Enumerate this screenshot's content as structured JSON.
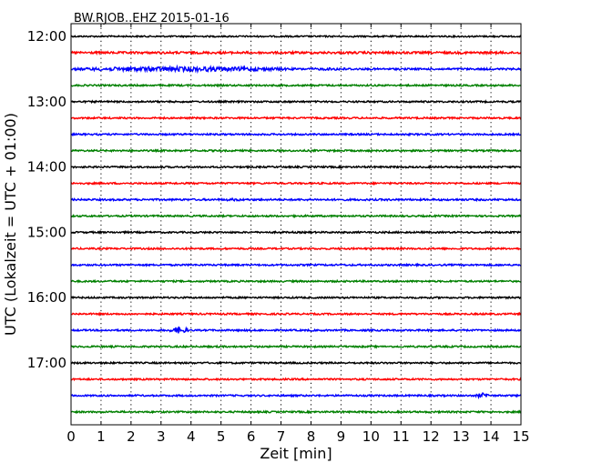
{
  "chart_data": {
    "type": "line",
    "title": "BW.RJOB..EHZ 2015-01-16",
    "xlabel": "Zeit  [min]",
    "ylabel": "UTC (Lokalzeit = UTC + 01:00)",
    "xlim": [
      0,
      15
    ],
    "x_ticks": [
      "0",
      "1",
      "2",
      "3",
      "4",
      "5",
      "6",
      "7",
      "8",
      "9",
      "10",
      "11",
      "12",
      "13",
      "14",
      "15"
    ],
    "y_ticks": [
      "12:00",
      "13:00",
      "14:00",
      "15:00",
      "16:00",
      "17:00"
    ],
    "grid": "vertical dotted",
    "color_cycle": [
      "#000000",
      "#ff0000",
      "#0000ff",
      "#008000"
    ],
    "series": [
      {
        "time": "12:00",
        "color": "#000000",
        "noise": 0.8,
        "events": []
      },
      {
        "time": "12:15",
        "color": "#ff0000",
        "noise": 1.2,
        "events": []
      },
      {
        "time": "12:30",
        "color": "#0000ff",
        "noise": 1.0,
        "events": [
          {
            "start": 0,
            "end": 7.5,
            "amp": 2.6
          },
          {
            "start": 7.5,
            "end": 10.0,
            "amp": 1.4
          }
        ]
      },
      {
        "time": "12:45",
        "color": "#008000",
        "noise": 0.9,
        "events": []
      },
      {
        "time": "13:00",
        "color": "#000000",
        "noise": 0.9,
        "events": []
      },
      {
        "time": "13:15",
        "color": "#ff0000",
        "noise": 0.9,
        "events": []
      },
      {
        "time": "13:30",
        "color": "#0000ff",
        "noise": 0.9,
        "events": []
      },
      {
        "time": "13:45",
        "color": "#008000",
        "noise": 0.9,
        "events": []
      },
      {
        "time": "14:00",
        "color": "#000000",
        "noise": 0.9,
        "events": []
      },
      {
        "time": "14:15",
        "color": "#ff0000",
        "noise": 0.9,
        "events": []
      },
      {
        "time": "14:30",
        "color": "#0000ff",
        "noise": 1.0,
        "events": [
          {
            "start": 5.0,
            "end": 5.8,
            "amp": 1.5
          }
        ]
      },
      {
        "time": "14:45",
        "color": "#008000",
        "noise": 0.9,
        "events": []
      },
      {
        "time": "15:00",
        "color": "#000000",
        "noise": 0.9,
        "events": []
      },
      {
        "time": "15:15",
        "color": "#ff0000",
        "noise": 0.9,
        "events": []
      },
      {
        "time": "15:30",
        "color": "#0000ff",
        "noise": 0.9,
        "events": []
      },
      {
        "time": "15:45",
        "color": "#008000",
        "noise": 0.9,
        "events": []
      },
      {
        "time": "16:00",
        "color": "#000000",
        "noise": 0.9,
        "events": []
      },
      {
        "time": "16:15",
        "color": "#ff0000",
        "noise": 0.9,
        "events": []
      },
      {
        "time": "16:30",
        "color": "#0000ff",
        "noise": 0.9,
        "events": [
          {
            "start": 3.3,
            "end": 3.9,
            "amp": 3.5
          }
        ]
      },
      {
        "time": "16:45",
        "color": "#008000",
        "noise": 0.9,
        "events": []
      },
      {
        "time": "17:00",
        "color": "#000000",
        "noise": 0.9,
        "events": []
      },
      {
        "time": "17:15",
        "color": "#ff0000",
        "noise": 0.9,
        "events": []
      },
      {
        "time": "17:30",
        "color": "#0000ff",
        "noise": 0.9,
        "events": [
          {
            "start": 13.5,
            "end": 14.0,
            "amp": 2.8
          }
        ]
      },
      {
        "time": "17:45",
        "color": "#008000",
        "noise": 0.9,
        "events": []
      }
    ]
  }
}
